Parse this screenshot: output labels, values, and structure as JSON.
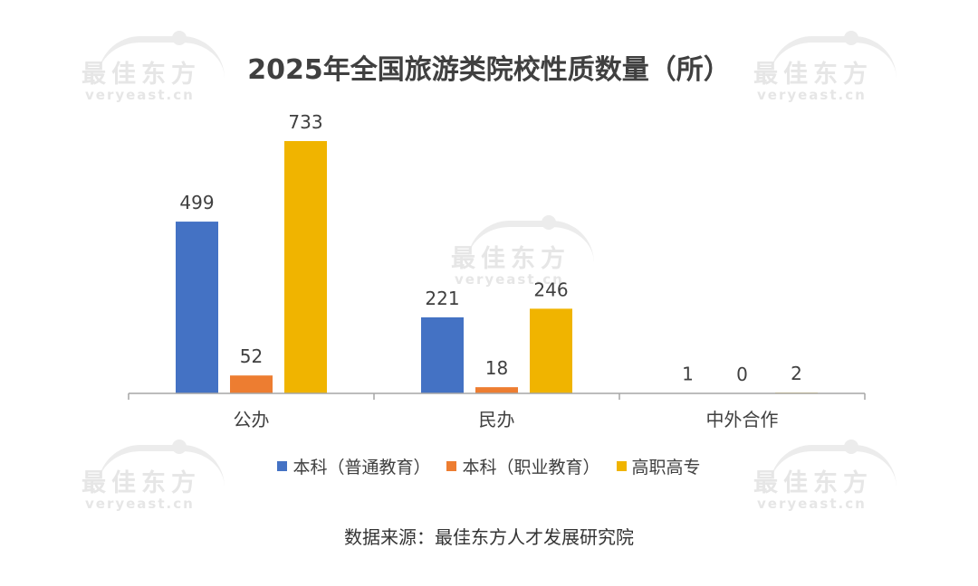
{
  "watermark": {
    "brand": "最佳东方",
    "domain": "veryeast.cn"
  },
  "chart_data": {
    "type": "bar",
    "title": "2025年全国旅游类院校性质数量（所）",
    "categories": [
      "公办",
      "民办",
      "中外合作"
    ],
    "series": [
      {
        "name": "本科（普通教育）",
        "color": "#4472C4",
        "values": [
          499,
          221,
          1
        ]
      },
      {
        "name": "本科（职业教育）",
        "color": "#ED7D31",
        "values": [
          52,
          18,
          0
        ]
      },
      {
        "name": "高职高专",
        "color": "#F0B400",
        "values": [
          733,
          246,
          2
        ]
      }
    ],
    "ylim": [
      0,
      733
    ],
    "grid": false,
    "legend_position": "bottom",
    "data_labels": true
  },
  "source_text": "数据来源：最佳东方人才发展研究院"
}
